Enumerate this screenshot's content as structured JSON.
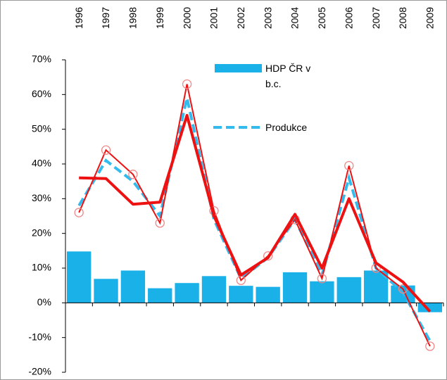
{
  "chart_data": {
    "type": "bar-line",
    "categories": [
      "1996",
      "1997",
      "1998",
      "1999",
      "2000",
      "2001",
      "2002",
      "2003",
      "2004",
      "2005",
      "2006",
      "2007",
      "2008",
      "2009"
    ],
    "series": [
      {
        "name": "HDP ČR v b.c.",
        "type": "bar",
        "color": "#1ab0e8",
        "values": [
          14.8,
          6.9,
          9.3,
          4.2,
          5.7,
          7.7,
          4.9,
          4.6,
          8.8,
          6.2,
          7.4,
          9.3,
          5.0,
          -2.7
        ]
      },
      {
        "name": "Produkce",
        "type": "line",
        "style": "dashed",
        "color": "#33bbee",
        "values": [
          28,
          41,
          35,
          25,
          59,
          24,
          7,
          13,
          24,
          8,
          36,
          10,
          3,
          -11
        ]
      },
      {
        "type": "line",
        "style": "thin-markers",
        "color": "#ee1111",
        "values": [
          26,
          44,
          37,
          23,
          63,
          26.5,
          6.5,
          13.5,
          24,
          7,
          39.5,
          10,
          4,
          -12.5
        ]
      },
      {
        "type": "line",
        "style": "thick",
        "color": "#ee1111",
        "values": [
          36,
          35.8,
          28.4,
          29,
          54,
          25,
          8,
          13,
          25.5,
          10,
          30,
          11.5,
          6,
          -2.5
        ]
      }
    ],
    "ylim": [
      -20,
      70
    ],
    "yticks": [
      {
        "value": -20,
        "label": "-20%"
      },
      {
        "value": -10,
        "label": "-10%"
      },
      {
        "value": 0,
        "label": "0%"
      },
      {
        "value": 10,
        "label": "10%"
      },
      {
        "value": 20,
        "label": "20%"
      },
      {
        "value": 30,
        "label": "30%"
      },
      {
        "value": 40,
        "label": "40%"
      },
      {
        "value": 50,
        "label": "50%"
      },
      {
        "value": 60,
        "label": "60%"
      },
      {
        "value": 70,
        "label": "70%"
      }
    ],
    "grid": false,
    "legend": "top-center"
  }
}
